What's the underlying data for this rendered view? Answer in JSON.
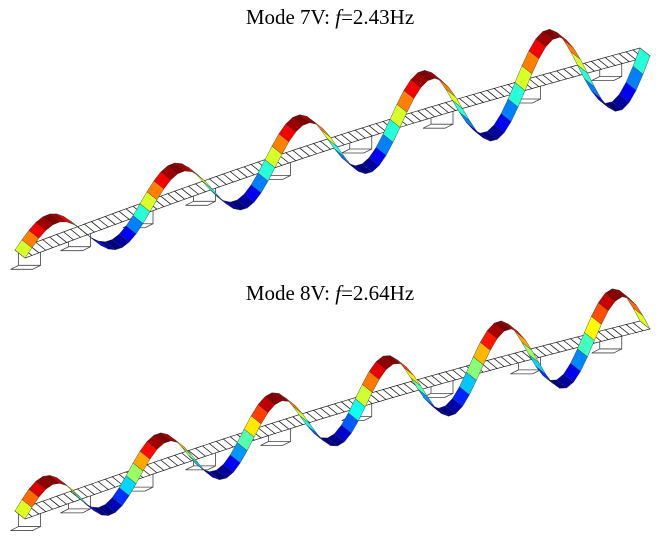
{
  "modes": [
    {
      "mode_label": "Mode 7V:",
      "freq_symbol": "f",
      "freq_value": "=2.43Hz",
      "wave": {
        "half_waves": 10,
        "colormap": "jet"
      }
    },
    {
      "mode_label": "Mode 8V:",
      "freq_symbol": "f",
      "freq_value": "=2.64Hz",
      "wave": {
        "half_waves": 11,
        "colormap": "jet"
      }
    }
  ]
}
